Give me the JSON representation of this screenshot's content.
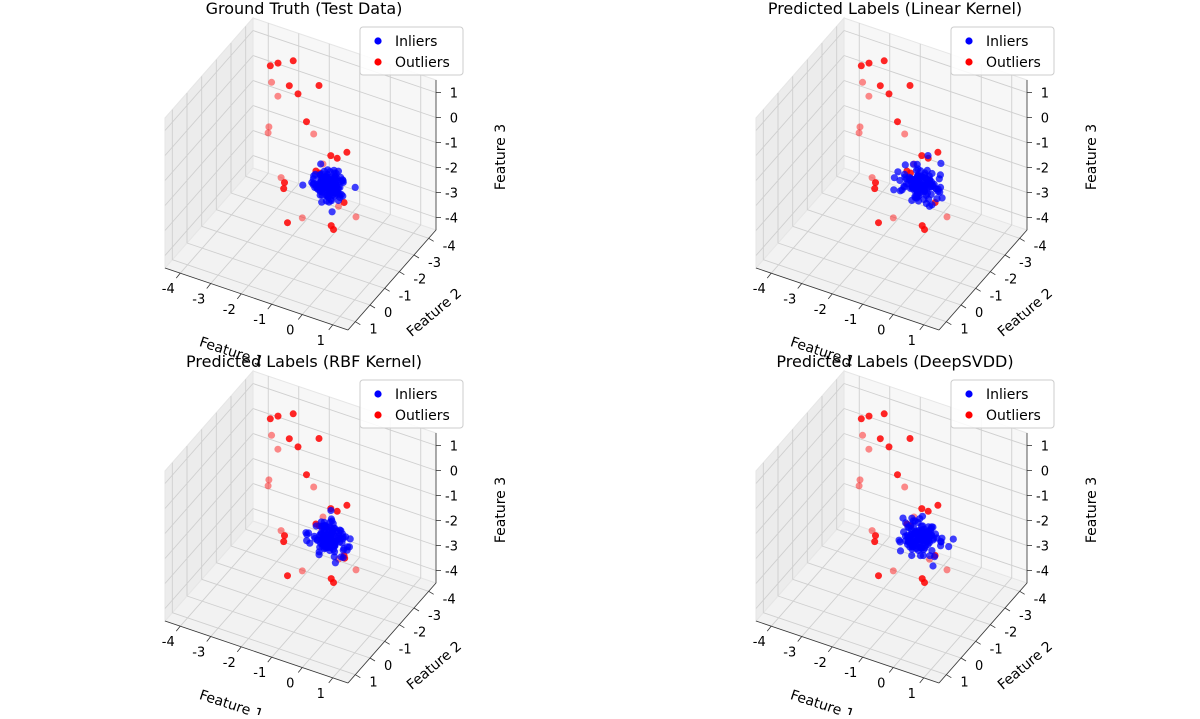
{
  "figure": {
    "legend_labels": [
      "Inliers",
      "Outliers"
    ],
    "inlier_color": "#0000ff",
    "outlier_color": "#ff0000",
    "legend_placement": "top-right"
  },
  "axes_labels": {
    "x": "Feature 1",
    "y": "Feature 2",
    "z": "Feature 3"
  },
  "ticks": {
    "x": [
      "-4",
      "-3",
      "-2",
      "-1",
      "0",
      "1"
    ],
    "y": [
      "-4",
      "-3",
      "-2",
      "-1",
      "0",
      "1"
    ],
    "z": [
      "-4",
      "-3",
      "-2",
      "-1",
      "0",
      "1"
    ]
  },
  "chart_data": [
    {
      "type": "scatter",
      "projection": "3d",
      "title": "Ground Truth (Test Data)",
      "xlabel": "Feature 1",
      "ylabel": "Feature 2",
      "zlabel": "Feature 3",
      "xlim": [
        -4,
        1.5
      ],
      "ylim": [
        -4,
        1.5
      ],
      "zlim": [
        -4,
        1.5
      ],
      "grid": true,
      "legend": [
        "Inliers",
        "Outliers"
      ],
      "inlier_cluster": {
        "center": [
          0.3,
          0.3,
          0.0
        ],
        "spread": 0.5,
        "count": 120
      },
      "series": [
        {
          "name": "Outliers",
          "color": "#ff0000",
          "points": [
            [
              -3.6,
              -3.9,
              -0.3
            ],
            [
              -3.5,
              -3.6,
              0.6
            ],
            [
              -3.2,
              -3.5,
              0.9
            ],
            [
              -3.3,
              -3.7,
              -0.6
            ],
            [
              -2.7,
              -3.5,
              1.2
            ],
            [
              -2.4,
              -3.2,
              0.2
            ],
            [
              -3.4,
              -3.3,
              -1.6
            ],
            [
              -2.0,
              -3.8,
              0.3
            ],
            [
              -2.3,
              -2.4,
              1.1
            ],
            [
              -1.5,
              -2.4,
              -0.5
            ],
            [
              -1.4,
              -1.7,
              0.5
            ],
            [
              -0.7,
              -1.9,
              -0.7
            ],
            [
              -1.1,
              -2.2,
              -1.4
            ],
            [
              -0.2,
              -1.3,
              -0.2
            ],
            [
              -2.1,
              -1.6,
              -2.4
            ],
            [
              -1.2,
              -1.0,
              -2.8
            ],
            [
              -0.3,
              -1.1,
              -2.8
            ],
            [
              0.4,
              0.2,
              -1.8
            ],
            [
              0.8,
              -0.5,
              -1.6
            ],
            [
              -0.6,
              -2.6,
              -3.0
            ],
            [
              -2.6,
              -2.7,
              -3.1
            ],
            [
              -1.8,
              -0.8,
              -1.3
            ],
            [
              -1.3,
              -0.2,
              -2.5
            ],
            [
              -0.7,
              -3.0,
              -1.3
            ],
            [
              0.9,
              0.9,
              -0.2
            ],
            [
              -0.9,
              -1.3,
              -1.0
            ],
            [
              -1.6,
              -3.0,
              -2.5
            ],
            [
              -2.9,
              -2.2,
              -0.9
            ]
          ]
        }
      ],
      "outliers_predicted_as_inliers": []
    },
    {
      "type": "scatter",
      "projection": "3d",
      "title": "Predicted Labels (Linear Kernel)",
      "xlabel": "Feature 1",
      "ylabel": "Feature 2",
      "zlabel": "Feature 3",
      "xlim": [
        -4,
        1.5
      ],
      "ylim": [
        -4,
        1.5
      ],
      "zlim": [
        -4,
        1.5
      ],
      "grid": true,
      "legend": [
        "Inliers",
        "Outliers"
      ],
      "inlier_cluster": {
        "center": [
          0.3,
          0.3,
          0.0
        ],
        "spread": 0.5,
        "count": 120
      },
      "series": [
        {
          "name": "Outliers",
          "color": "#ff0000",
          "points": [
            [
              -3.6,
              -3.9,
              -0.3
            ],
            [
              -3.5,
              -3.6,
              0.6
            ],
            [
              -3.2,
              -3.5,
              0.9
            ],
            [
              -3.3,
              -3.7,
              -0.6
            ],
            [
              -2.7,
              -3.5,
              1.2
            ],
            [
              -2.4,
              -3.2,
              0.2
            ],
            [
              -3.4,
              -3.3,
              -1.6
            ],
            [
              -2.0,
              -3.8,
              0.3
            ],
            [
              -2.3,
              -2.4,
              1.1
            ],
            [
              -1.5,
              -2.4,
              -0.5
            ],
            [
              -1.4,
              -1.7,
              0.5
            ],
            [
              -0.7,
              -1.9,
              -0.7
            ],
            [
              -1.1,
              -2.2,
              -1.4
            ],
            [
              -0.2,
              -1.3,
              -0.2
            ],
            [
              -2.1,
              -1.6,
              -2.4
            ],
            [
              -1.2,
              -1.0,
              -2.8
            ],
            [
              -0.3,
              -1.1,
              -2.8
            ],
            [
              0.4,
              0.2,
              -1.8
            ],
            [
              0.8,
              -0.5,
              -1.6
            ],
            [
              -0.6,
              -2.6,
              -3.0
            ],
            [
              -2.6,
              -2.7,
              -3.1
            ],
            [
              -1.8,
              -0.8,
              -1.3
            ],
            [
              -1.3,
              -0.2,
              -2.5
            ],
            [
              -0.7,
              -3.0,
              -1.3
            ],
            [
              0.1,
              0.5,
              0.2
            ],
            [
              -0.9,
              -1.3,
              -1.0
            ],
            [
              -1.6,
              -3.0,
              -2.5
            ],
            [
              -2.9,
              -2.2,
              -0.9
            ]
          ]
        }
      ],
      "outliers_predicted_as_inliers": [
        [
          0.9,
          0.9,
          -0.2
        ]
      ]
    },
    {
      "type": "scatter",
      "projection": "3d",
      "title": "Predicted Labels (RBF Kernel)",
      "xlabel": "Feature 1",
      "ylabel": "Feature 2",
      "zlabel": "Feature 3",
      "xlim": [
        -4,
        1.5
      ],
      "ylim": [
        -4,
        1.5
      ],
      "zlim": [
        -4,
        1.5
      ],
      "grid": true,
      "legend": [
        "Inliers",
        "Outliers"
      ],
      "inlier_cluster": {
        "center": [
          0.3,
          0.3,
          0.0
        ],
        "spread": 0.5,
        "count": 120
      },
      "series": [
        {
          "name": "Outliers",
          "color": "#ff0000",
          "points": [
            [
              -3.6,
              -3.9,
              -0.3
            ],
            [
              -3.5,
              -3.6,
              0.6
            ],
            [
              -3.2,
              -3.5,
              0.9
            ],
            [
              -3.3,
              -3.7,
              -0.6
            ],
            [
              -2.7,
              -3.5,
              1.2
            ],
            [
              -2.4,
              -3.2,
              0.2
            ],
            [
              -3.4,
              -3.3,
              -1.6
            ],
            [
              -2.0,
              -3.8,
              0.3
            ],
            [
              -2.3,
              -2.4,
              1.1
            ],
            [
              -1.5,
              -2.4,
              -0.5
            ],
            [
              -1.4,
              -1.7,
              0.5
            ],
            [
              -0.7,
              -1.9,
              -0.7
            ],
            [
              -1.1,
              -2.2,
              -1.4
            ],
            [
              -0.2,
              -1.3,
              -0.2
            ],
            [
              -2.1,
              -1.6,
              -2.4
            ],
            [
              -1.2,
              -1.0,
              -2.8
            ],
            [
              -0.3,
              -1.1,
              -2.8
            ],
            [
              0.4,
              0.2,
              -1.8
            ],
            [
              0.8,
              -0.5,
              -1.6
            ],
            [
              -0.6,
              -2.6,
              -3.0
            ],
            [
              -2.6,
              -2.7,
              -3.1
            ],
            [
              -1.8,
              -0.8,
              -1.3
            ],
            [
              -1.3,
              -0.2,
              -2.5
            ],
            [
              -0.7,
              -3.0,
              -1.3
            ],
            [
              0.9,
              0.9,
              -0.2
            ],
            [
              -0.9,
              -1.3,
              -1.0
            ],
            [
              -1.6,
              -3.0,
              -2.5
            ],
            [
              -2.9,
              -2.2,
              -0.9
            ],
            [
              1.2,
              1.1,
              0.1
            ]
          ]
        }
      ],
      "outliers_predicted_as_inliers": []
    },
    {
      "type": "scatter",
      "projection": "3d",
      "title": "Predicted Labels (DeepSVDD)",
      "xlabel": "Feature 1",
      "ylabel": "Feature 2",
      "zlabel": "Feature 3",
      "xlim": [
        -4,
        1.5
      ],
      "ylim": [
        -4,
        1.5
      ],
      "zlim": [
        -4,
        1.5
      ],
      "grid": true,
      "legend": [
        "Inliers",
        "Outliers"
      ],
      "inlier_cluster": {
        "center": [
          0.3,
          0.3,
          0.0
        ],
        "spread": 0.5,
        "count": 120
      },
      "series": [
        {
          "name": "Outliers",
          "color": "#ff0000",
          "points": [
            [
              -3.6,
              -3.9,
              -0.3
            ],
            [
              -3.5,
              -3.6,
              0.6
            ],
            [
              -3.2,
              -3.5,
              0.9
            ],
            [
              -3.3,
              -3.7,
              -0.6
            ],
            [
              -2.7,
              -3.5,
              1.2
            ],
            [
              -2.4,
              -3.2,
              0.2
            ],
            [
              -3.4,
              -3.3,
              -1.6
            ],
            [
              -2.0,
              -3.8,
              0.3
            ],
            [
              -2.3,
              -2.4,
              1.1
            ],
            [
              -1.5,
              -2.4,
              -0.5
            ],
            [
              -1.4,
              -1.7,
              0.5
            ],
            [
              -0.7,
              -1.9,
              -0.7
            ],
            [
              -1.1,
              -2.2,
              -1.4
            ],
            [
              -0.2,
              -1.3,
              -0.2
            ],
            [
              -2.1,
              -1.6,
              -2.4
            ],
            [
              -1.2,
              -1.0,
              -2.8
            ],
            [
              -0.3,
              -1.1,
              -2.8
            ],
            [
              0.4,
              0.2,
              -1.8
            ],
            [
              0.8,
              -0.5,
              -1.6
            ],
            [
              -0.6,
              -2.6,
              -3.0
            ],
            [
              -2.6,
              -2.7,
              -3.1
            ],
            [
              -1.8,
              -0.8,
              -1.3
            ],
            [
              -1.3,
              -0.2,
              -2.5
            ],
            [
              -0.7,
              -3.0,
              -1.3
            ],
            [
              0.9,
              0.9,
              -0.2
            ],
            [
              -0.9,
              -1.3,
              -1.0
            ],
            [
              -1.6,
              -3.0,
              -2.5
            ],
            [
              -2.9,
              -2.2,
              -0.9
            ]
          ]
        }
      ],
      "outliers_predicted_as_inliers": []
    }
  ]
}
